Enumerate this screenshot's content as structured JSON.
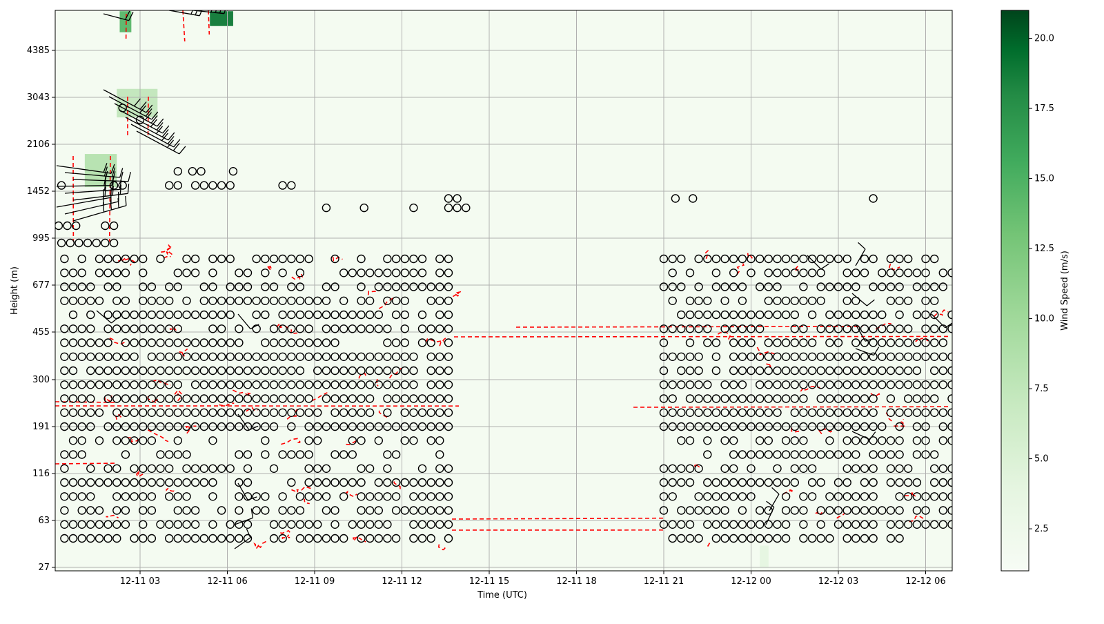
{
  "chart_data": {
    "type": "heatmap",
    "title": "",
    "xlabel": "Time (UTC)",
    "ylabel": "Height (m)",
    "colorbar_label": "Wind Speed (m/s)",
    "colormap": "Greens",
    "colorbar_range": [
      1.0,
      21.0
    ],
    "colorbar_ticks": [
      "2.5",
      "5.0",
      "7.5",
      "10.0",
      "12.5",
      "15.0",
      "17.5",
      "20.0"
    ],
    "x_axis": {
      "start": "12-11 00:06",
      "end": "12-12 06:58",
      "tick_labels": [
        "12-11 03",
        "12-11 06",
        "12-11 09",
        "12-11 12",
        "12-11 15",
        "12-11 18",
        "12-11 21",
        "12-12 00",
        "12-12 03",
        "12-12 06"
      ]
    },
    "y_axis": {
      "scale": "log",
      "tick_labels": [
        "27",
        "63",
        "116",
        "191",
        "300",
        "455",
        "677",
        "995",
        "1452",
        "2106",
        "3043",
        "4385"
      ]
    },
    "grid": true,
    "calm_markers": "circles (wind below barb threshold)",
    "wind_barbs": "black barbs",
    "contour_color": "#ff0000",
    "contour_style": "dashed",
    "wind_speed_patches": [
      {
        "time_hours": [
          1.1,
          2.2
        ],
        "height_m": [
          1500,
          1950
        ],
        "speed_ms": 8.5
      },
      {
        "time_hours": [
          2.2,
          3.6
        ],
        "height_m": [
          2600,
          3250
        ],
        "speed_ms": 7.5
      },
      {
        "time_hours": [
          2.3,
          2.7
        ],
        "height_m": [
          5050,
          5950
        ],
        "speed_ms": 14.5
      },
      {
        "time_hours": [
          5.4,
          6.2
        ],
        "height_m": [
          5300,
          5950
        ],
        "speed_ms": 19.0
      },
      {
        "time_hours": [
          24.3,
          24.6
        ],
        "height_m": [
          27,
          40
        ],
        "speed_ms": 4.0
      }
    ],
    "calm_marker_rows": [
      {
        "height_m": 1100,
        "times": [
          0.2,
          0.5,
          0.8,
          1.8,
          2.1
        ]
      },
      {
        "height_m": 1520,
        "times": [
          0.3,
          2.1,
          2.4,
          4.0,
          4.3,
          4.9,
          5.2,
          5.5,
          5.8,
          6.1,
          7.9,
          8.2
        ]
      },
      {
        "height_m": 1700,
        "times": [
          4.3,
          4.8,
          5.1,
          6.2
        ]
      },
      {
        "height_m": 1270,
        "times": [
          9.4,
          10.7,
          12.4,
          13.6,
          13.9,
          14.2
        ]
      },
      {
        "height_m": 1370,
        "times": [
          13.6,
          13.9,
          21.4,
          22.0,
          28.2
        ]
      },
      {
        "height_m": 2800,
        "times": [
          2.4
        ]
      },
      {
        "height_m": 2550,
        "times": [
          3.0
        ]
      }
    ],
    "low_level_jet_lines_m": [
      63,
      240,
      450
    ]
  }
}
